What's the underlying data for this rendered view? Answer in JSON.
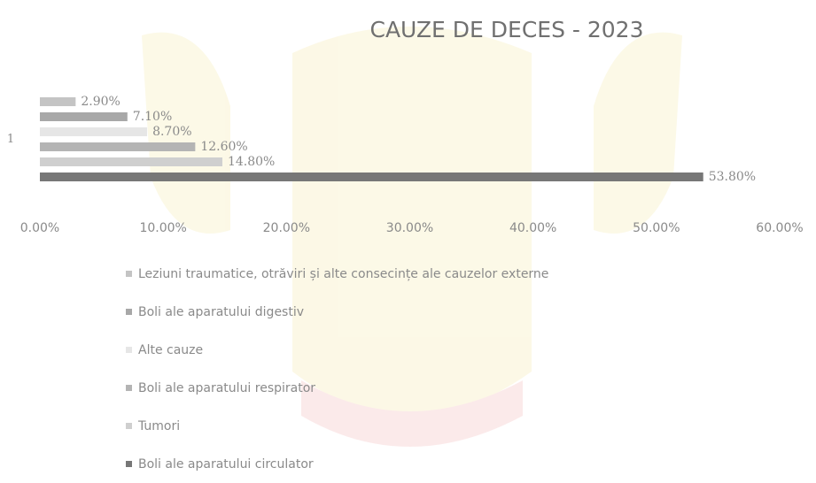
{
  "chart_data": {
    "type": "barh",
    "title": "CAUZE DE DECES - 2023",
    "categories": [
      "1"
    ],
    "series": [
      {
        "name": "Leziuni traumatice, otrăviri și alte consecințe ale cauzelor externe",
        "color": "#c4c4c4",
        "values": [
          2.9
        ],
        "value_labels": [
          "2.90%"
        ]
      },
      {
        "name": "Boli ale aparatului digestiv",
        "color": "#a8a8a8",
        "values": [
          7.1
        ],
        "value_labels": [
          "7.10%"
        ]
      },
      {
        "name": "Alte cauze",
        "color": "#e6e6e6",
        "values": [
          8.7
        ],
        "value_labels": [
          "8.70%"
        ]
      },
      {
        "name": "Boli ale aparatului respirator",
        "color": "#b4b4b4",
        "values": [
          12.6
        ],
        "value_labels": [
          "12.60%"
        ]
      },
      {
        "name": "Tumori",
        "color": "#cfcfcf",
        "values": [
          14.8
        ],
        "value_labels": [
          "14.80%"
        ]
      },
      {
        "name": "Boli ale aparatului circulator",
        "color": "#777777",
        "values": [
          53.8
        ],
        "value_labels": [
          "53.80%"
        ]
      }
    ],
    "xlim": [
      0,
      60
    ],
    "xticks": [
      {
        "value": 0,
        "label": "0.00%"
      },
      {
        "value": 10,
        "label": "10.00%"
      },
      {
        "value": 20,
        "label": "20.00%"
      },
      {
        "value": 30,
        "label": "30.00%"
      },
      {
        "value": 40,
        "label": "40.00%"
      },
      {
        "value": 50,
        "label": "50.00%"
      },
      {
        "value": 60,
        "label": "60.00%"
      }
    ],
    "grid": false
  }
}
